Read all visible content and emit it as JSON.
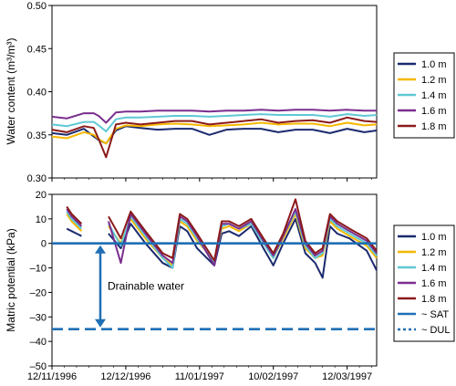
{
  "chart_data": [
    {
      "type": "line",
      "ylabel": "Water content (m³/m³)",
      "ylim": [
        0.3,
        0.5
      ],
      "yticks": [
        "0.30",
        "0.35",
        "0.40",
        "0.45",
        "0.50"
      ],
      "xlim": [
        "1996-11-12",
        "1997-03-24"
      ],
      "grid": false,
      "legend_position": "right",
      "series": [
        {
          "name": "1.0 m",
          "color": "#1b2a6e",
          "x": [
            "1996-11-12",
            "1996-11-18",
            "1996-11-25",
            "1996-11-29",
            "1996-12-01",
            "1996-12-04",
            "1996-12-08",
            "1996-12-12",
            "1996-12-18",
            "1996-12-25",
            "1997-01-01",
            "1997-01-08",
            "1997-01-15",
            "1997-01-22",
            "1997-01-29",
            "1997-02-05",
            "1997-02-12",
            "1997-02-19",
            "1997-02-26",
            "1997-03-05",
            "1997-03-12",
            "1997-03-19",
            "1997-03-24"
          ],
          "y": [
            0.352,
            0.35,
            0.357,
            0.348,
            0.344,
            0.34,
            0.355,
            0.36,
            0.358,
            0.356,
            0.357,
            0.357,
            0.35,
            0.356,
            0.357,
            0.357,
            0.353,
            0.356,
            0.356,
            0.352,
            0.357,
            0.353,
            0.355
          ]
        },
        {
          "name": "1.2 m",
          "color": "#f5b800",
          "x": [
            "1996-11-12",
            "1996-11-18",
            "1996-11-25",
            "1996-11-29",
            "1996-12-01",
            "1996-12-04",
            "1996-12-08",
            "1996-12-12",
            "1996-12-18",
            "1996-12-25",
            "1997-01-01",
            "1997-01-08",
            "1997-01-15",
            "1997-01-22",
            "1997-01-29",
            "1997-02-05",
            "1997-02-12",
            "1997-02-19",
            "1997-02-26",
            "1997-03-05",
            "1997-03-12",
            "1997-03-19",
            "1997-03-24"
          ],
          "y": [
            0.348,
            0.346,
            0.353,
            0.35,
            0.345,
            0.34,
            0.357,
            0.361,
            0.36,
            0.362,
            0.363,
            0.362,
            0.36,
            0.361,
            0.362,
            0.364,
            0.362,
            0.363,
            0.363,
            0.36,
            0.364,
            0.361,
            0.362
          ]
        },
        {
          "name": "1.4 m",
          "color": "#5fc8d5",
          "x": [
            "1996-11-12",
            "1996-11-18",
            "1996-11-25",
            "1996-11-29",
            "1996-12-01",
            "1996-12-04",
            "1996-12-08",
            "1996-12-12",
            "1996-12-18",
            "1996-12-25",
            "1997-01-01",
            "1997-01-08",
            "1997-01-15",
            "1997-01-22",
            "1997-01-29",
            "1997-02-05",
            "1997-02-12",
            "1997-02-19",
            "1997-02-26",
            "1997-03-05",
            "1997-03-12",
            "1997-03-19",
            "1997-03-24"
          ],
          "y": [
            0.362,
            0.36,
            0.365,
            0.365,
            0.361,
            0.354,
            0.368,
            0.37,
            0.37,
            0.371,
            0.372,
            0.372,
            0.371,
            0.372,
            0.373,
            0.374,
            0.373,
            0.373,
            0.373,
            0.371,
            0.374,
            0.372,
            0.373
          ]
        },
        {
          "name": "1.6 m",
          "color": "#7a2e8e",
          "x": [
            "1996-11-12",
            "1996-11-18",
            "1996-11-25",
            "1996-11-29",
            "1996-12-01",
            "1996-12-04",
            "1996-12-08",
            "1996-12-12",
            "1996-12-18",
            "1996-12-25",
            "1997-01-01",
            "1997-01-08",
            "1997-01-15",
            "1997-01-22",
            "1997-01-29",
            "1997-02-05",
            "1997-02-12",
            "1997-02-19",
            "1997-02-26",
            "1997-03-05",
            "1997-03-12",
            "1997-03-19",
            "1997-03-24"
          ],
          "y": [
            0.371,
            0.369,
            0.375,
            0.375,
            0.372,
            0.364,
            0.376,
            0.377,
            0.377,
            0.378,
            0.378,
            0.378,
            0.377,
            0.378,
            0.378,
            0.379,
            0.378,
            0.379,
            0.379,
            0.378,
            0.379,
            0.378,
            0.378
          ]
        },
        {
          "name": "1.8 m",
          "color": "#8b1a1a",
          "x": [
            "1996-11-12",
            "1996-11-18",
            "1996-11-25",
            "1996-11-29",
            "1996-12-01",
            "1996-12-04",
            "1996-12-08",
            "1996-12-12",
            "1996-12-18",
            "1996-12-25",
            "1997-01-01",
            "1997-01-08",
            "1997-01-15",
            "1997-01-22",
            "1997-01-29",
            "1997-02-05",
            "1997-02-12",
            "1997-02-19",
            "1997-02-26",
            "1997-03-05",
            "1997-03-12",
            "1997-03-19",
            "1997-03-24"
          ],
          "y": [
            0.356,
            0.353,
            0.36,
            0.358,
            0.345,
            0.324,
            0.362,
            0.364,
            0.362,
            0.364,
            0.366,
            0.366,
            0.362,
            0.364,
            0.366,
            0.368,
            0.364,
            0.366,
            0.367,
            0.364,
            0.37,
            0.366,
            0.365
          ]
        }
      ]
    },
    {
      "type": "line",
      "xlabel": "",
      "ylabel": "Matric potential (kPa)",
      "ylim": [
        -50,
        20
      ],
      "yticks": [
        "–50",
        "–40",
        "–30",
        "–20",
        "–10",
        "0",
        "10",
        "20"
      ],
      "xlim": [
        "1996-11-12",
        "1997-03-24"
      ],
      "xticks": [
        "12/11/1996",
        "12/12/1996",
        "11/01/1997",
        "10/02/1997",
        "12/03/1997"
      ],
      "grid": false,
      "legend_position": "right",
      "annotation": "Drainable water",
      "series": [
        {
          "name": "1.0 m",
          "color": "#1b2a6e",
          "x": [
            "1996-11-18",
            "1996-11-20",
            "1996-11-22",
            "1996-11-24",
            null,
            "1996-12-05",
            "1996-12-10",
            "1996-12-14",
            "1996-12-20",
            "1996-12-27",
            "1996-12-31",
            "1997-01-03",
            "1997-01-06",
            "1997-01-10",
            "1997-01-17",
            "1997-01-20",
            "1997-01-23",
            "1997-01-27",
            "1997-02-01",
            "1997-02-06",
            "1997-02-10",
            "1997-02-14",
            "1997-02-19",
            "1997-02-23",
            "1997-02-27",
            "1997-03-02",
            "1997-03-05",
            "1997-03-08",
            "1997-03-13",
            "1997-03-20",
            "1997-03-24"
          ],
          "y": [
            6,
            5,
            4,
            3,
            null,
            4,
            -2,
            8,
            0,
            -8,
            -10,
            7,
            5,
            -2,
            -9,
            4,
            5,
            3,
            7,
            -2,
            -9,
            0,
            10,
            -4,
            -8,
            -14,
            7,
            4,
            2,
            -3,
            -11
          ]
        },
        {
          "name": "1.2 m",
          "color": "#f5b800",
          "x": [
            "1996-11-18",
            "1996-11-20",
            "1996-11-22",
            "1996-11-24",
            null,
            "1996-12-05",
            "1996-12-10",
            "1996-12-14",
            "1996-12-20",
            "1996-12-27",
            "1996-12-31",
            "1997-01-03",
            "1997-01-06",
            "1997-01-10",
            "1997-01-17",
            "1997-01-20",
            "1997-01-23",
            "1997-01-27",
            "1997-02-01",
            "1997-02-06",
            "1997-02-10",
            "1997-02-14",
            "1997-02-19",
            "1997-02-23",
            "1997-02-27",
            "1997-03-02",
            "1997-03-05",
            "1997-03-08",
            "1997-03-13",
            "1997-03-20",
            "1997-03-24"
          ],
          "y": [
            12,
            9,
            7,
            5,
            null,
            7,
            0,
            10,
            2,
            -6,
            -9,
            9,
            7,
            1,
            -7,
            6,
            7,
            5,
            8,
            0,
            -6,
            2,
            12,
            -2,
            -6,
            -5,
            9,
            6,
            3,
            -1,
            -6
          ]
        },
        {
          "name": "1.4 m",
          "color": "#5fc8d5",
          "x": [
            "1996-11-18",
            "1996-11-20",
            "1996-11-22",
            "1996-11-24",
            null,
            "1996-12-05",
            "1996-12-10",
            "1996-12-14",
            "1996-12-20",
            "1996-12-27",
            "1996-12-31",
            "1997-01-03",
            "1997-01-06",
            "1997-01-10",
            "1997-01-17",
            "1997-01-20",
            "1997-01-23",
            "1997-01-27",
            "1997-02-01",
            "1997-02-06",
            "1997-02-10",
            "1997-02-14",
            "1997-02-19",
            "1997-02-23",
            "1997-02-27",
            "1997-03-02",
            "1997-03-05",
            "1997-03-08",
            "1997-03-13",
            "1997-03-20",
            "1997-03-24"
          ],
          "y": [
            13,
            10,
            8,
            6,
            null,
            8,
            -1,
            11,
            3,
            -6,
            -10,
            10,
            8,
            2,
            -8,
            7,
            8,
            6,
            8,
            0,
            -6,
            3,
            13,
            -1,
            -6,
            -4,
            10,
            7,
            4,
            0,
            -5
          ]
        },
        {
          "name": "1.6 m",
          "color": "#7a2e8e",
          "x": [
            "1996-11-18",
            "1996-11-20",
            "1996-11-22",
            "1996-11-24",
            null,
            "1996-12-05",
            "1996-12-10",
            "1996-12-14",
            "1996-12-20",
            "1996-12-27",
            "1996-12-31",
            "1997-01-03",
            "1997-01-06",
            "1997-01-10",
            "1997-01-17",
            "1997-01-20",
            "1997-01-23",
            "1997-01-27",
            "1997-02-01",
            "1997-02-06",
            "1997-02-10",
            "1997-02-14",
            "1997-02-19",
            "1997-02-23",
            "1997-02-27",
            "1997-03-02",
            "1997-03-05",
            "1997-03-08",
            "1997-03-13",
            "1997-03-20",
            "1997-03-24"
          ],
          "y": [
            14,
            11,
            9,
            7,
            null,
            9,
            -8,
            12,
            4,
            -5,
            -8,
            11,
            9,
            3,
            -9,
            8,
            8,
            6,
            9,
            1,
            -5,
            3,
            14,
            0,
            -5,
            -3,
            11,
            8,
            5,
            1,
            -4
          ]
        },
        {
          "name": "1.8 m",
          "color": "#8b1a1a",
          "x": [
            "1996-11-18",
            "1996-11-20",
            "1996-11-22",
            "1996-11-24",
            null,
            "1996-12-05",
            "1996-12-10",
            "1996-12-14",
            "1996-12-20",
            "1996-12-27",
            "1996-12-31",
            "1997-01-03",
            "1997-01-06",
            "1997-01-10",
            "1997-01-17",
            "1997-01-20",
            "1997-01-23",
            "1997-01-27",
            "1997-02-01",
            "1997-02-06",
            "1997-02-10",
            "1997-02-14",
            "1997-02-19",
            "1997-02-23",
            "1997-02-27",
            "1997-03-02",
            "1997-03-05",
            "1997-03-08",
            "1997-03-13",
            "1997-03-20",
            "1997-03-24"
          ],
          "y": [
            15,
            12,
            10,
            8,
            null,
            11,
            2,
            13,
            5,
            -4,
            -6,
            12,
            10,
            4,
            -7,
            9,
            9,
            7,
            10,
            2,
            -4,
            4,
            18,
            1,
            -4,
            -2,
            12,
            9,
            6,
            2,
            -3
          ]
        },
        {
          "name": "~ SAT",
          "color": "#1f6fb4",
          "style": "solid",
          "constant": 0
        },
        {
          "name": "~ DUL",
          "color": "#1f6fb4",
          "style": "dashed",
          "constant": -35
        }
      ]
    }
  ]
}
